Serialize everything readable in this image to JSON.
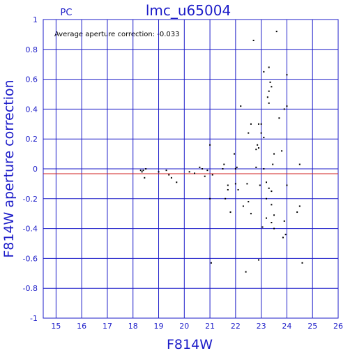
{
  "chart_data": {
    "type": "scatter",
    "title": "lmc_u65004",
    "subtitle": "PC",
    "annotation": "Average aperture correction: -0.033",
    "average": -0.033,
    "average_color": "#d02020",
    "x_label": "F814W",
    "y_label": "F814W aperture correction",
    "color": "#000000",
    "grid": true,
    "grid_color": "#1c1cc8",
    "xlim": [
      14.5,
      26
    ],
    "xticks": [
      15,
      16,
      17,
      18,
      19,
      20,
      21,
      22,
      23,
      24,
      25,
      26
    ],
    "ylim": [
      -1,
      1
    ],
    "yticks": [
      -1,
      -0.8,
      -0.6,
      -0.4,
      -0.2,
      0,
      0.2,
      0.4,
      0.6,
      0.8,
      1
    ],
    "x": [
      18.3,
      18.35,
      18.4,
      18.45,
      18.5,
      19.0,
      19.3,
      19.4,
      19.5,
      19.7,
      20.2,
      20.4,
      20.6,
      20.7,
      20.8,
      20.9,
      21.0,
      21.0,
      21.1,
      21.05,
      21.5,
      21.55,
      21.6,
      21.7,
      21.7,
      21.8,
      21.95,
      22.0,
      22.05,
      22.0,
      22.1,
      22.2,
      22.3,
      22.4,
      22.45,
      22.5,
      22.5,
      22.6,
      22.6,
      22.7,
      22.8,
      22.8,
      22.85,
      22.9,
      22.9,
      22.95,
      22.9,
      23.0,
      23.0,
      23.05,
      23.1,
      23.1,
      23.1,
      23.2,
      23.2,
      23.25,
      23.3,
      23.3,
      23.3,
      23.35,
      23.4,
      23.4,
      23.4,
      23.45,
      23.5,
      23.5,
      23.6,
      23.7,
      23.8,
      23.85,
      23.9,
      23.9,
      23.95,
      24.0,
      24.0,
      24.0,
      24.4,
      24.5,
      24.5,
      24.6,
      23.3,
      23.5,
      23.2,
      23.4
    ],
    "values": [
      -0.01,
      -0.02,
      -0.01,
      -0.06,
      0.0,
      -0.02,
      -0.01,
      -0.04,
      -0.06,
      -0.09,
      -0.02,
      -0.03,
      0.01,
      0.0,
      -0.05,
      -0.01,
      0.16,
      -0.2,
      -0.04,
      -0.63,
      0.0,
      0.03,
      -0.2,
      -0.11,
      -0.14,
      -0.29,
      0.1,
      0.0,
      0.01,
      -0.1,
      -0.14,
      0.42,
      -0.25,
      -0.69,
      -0.1,
      -0.22,
      0.24,
      0.3,
      -0.3,
      0.86,
      0.13,
      0.01,
      0.16,
      0.3,
      0.14,
      -0.11,
      -0.61,
      0.3,
      0.24,
      -0.39,
      0.65,
      0.21,
      0.0,
      -0.09,
      -0.33,
      0.48,
      0.52,
      0.68,
      -0.13,
      0.58,
      0.55,
      -0.36,
      -0.15,
      0.03,
      -0.31,
      -0.4,
      0.92,
      0.34,
      0.12,
      -0.46,
      0.4,
      -0.35,
      -0.44,
      0.63,
      0.42,
      -0.11,
      -0.29,
      -0.25,
      0.03,
      -0.63,
      0.44,
      0.1,
      -0.2,
      -0.24
    ]
  }
}
